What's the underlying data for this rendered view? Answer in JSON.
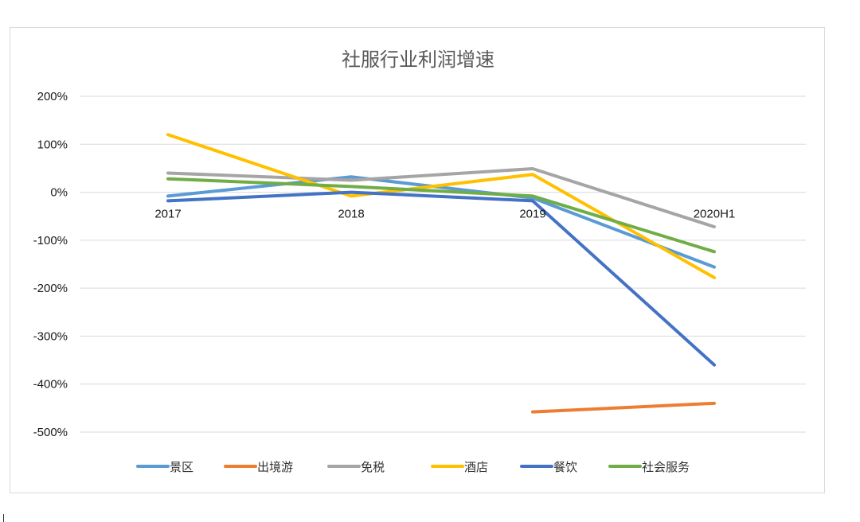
{
  "chart_data": {
    "type": "line",
    "title": "社服行业利润增速",
    "categories": [
      "2017",
      "2018",
      "2019",
      "2020H1"
    ],
    "ylim": [
      -500,
      200
    ],
    "yticks": [
      200,
      100,
      0,
      -100,
      -200,
      -300,
      -400,
      -500
    ],
    "ytick_labels": [
      "200%",
      "100%",
      "0%",
      "-100%",
      "-200%",
      "-300%",
      "-400%",
      "-500%"
    ],
    "xlabel": "",
    "ylabel": "",
    "grid": true,
    "legend_position": "bottom",
    "series": [
      {
        "name": "景区",
        "color": "#5B9BD5",
        "values": [
          -8,
          32,
          -12,
          -156
        ]
      },
      {
        "name": "出境游",
        "color": "#ED7D31",
        "values": [
          null,
          null,
          -458,
          -440
        ]
      },
      {
        "name": "免税",
        "color": "#A5A5A5",
        "values": [
          40,
          25,
          49,
          -72
        ]
      },
      {
        "name": "酒店",
        "color": "#FFC000",
        "values": [
          120,
          -8,
          37,
          -178
        ]
      },
      {
        "name": "餐饮",
        "color": "#4472C4",
        "values": [
          -18,
          0,
          -18,
          -360
        ]
      },
      {
        "name": "社会服务",
        "color": "#70AD47",
        "values": [
          28,
          12,
          -8,
          -124
        ]
      }
    ]
  }
}
